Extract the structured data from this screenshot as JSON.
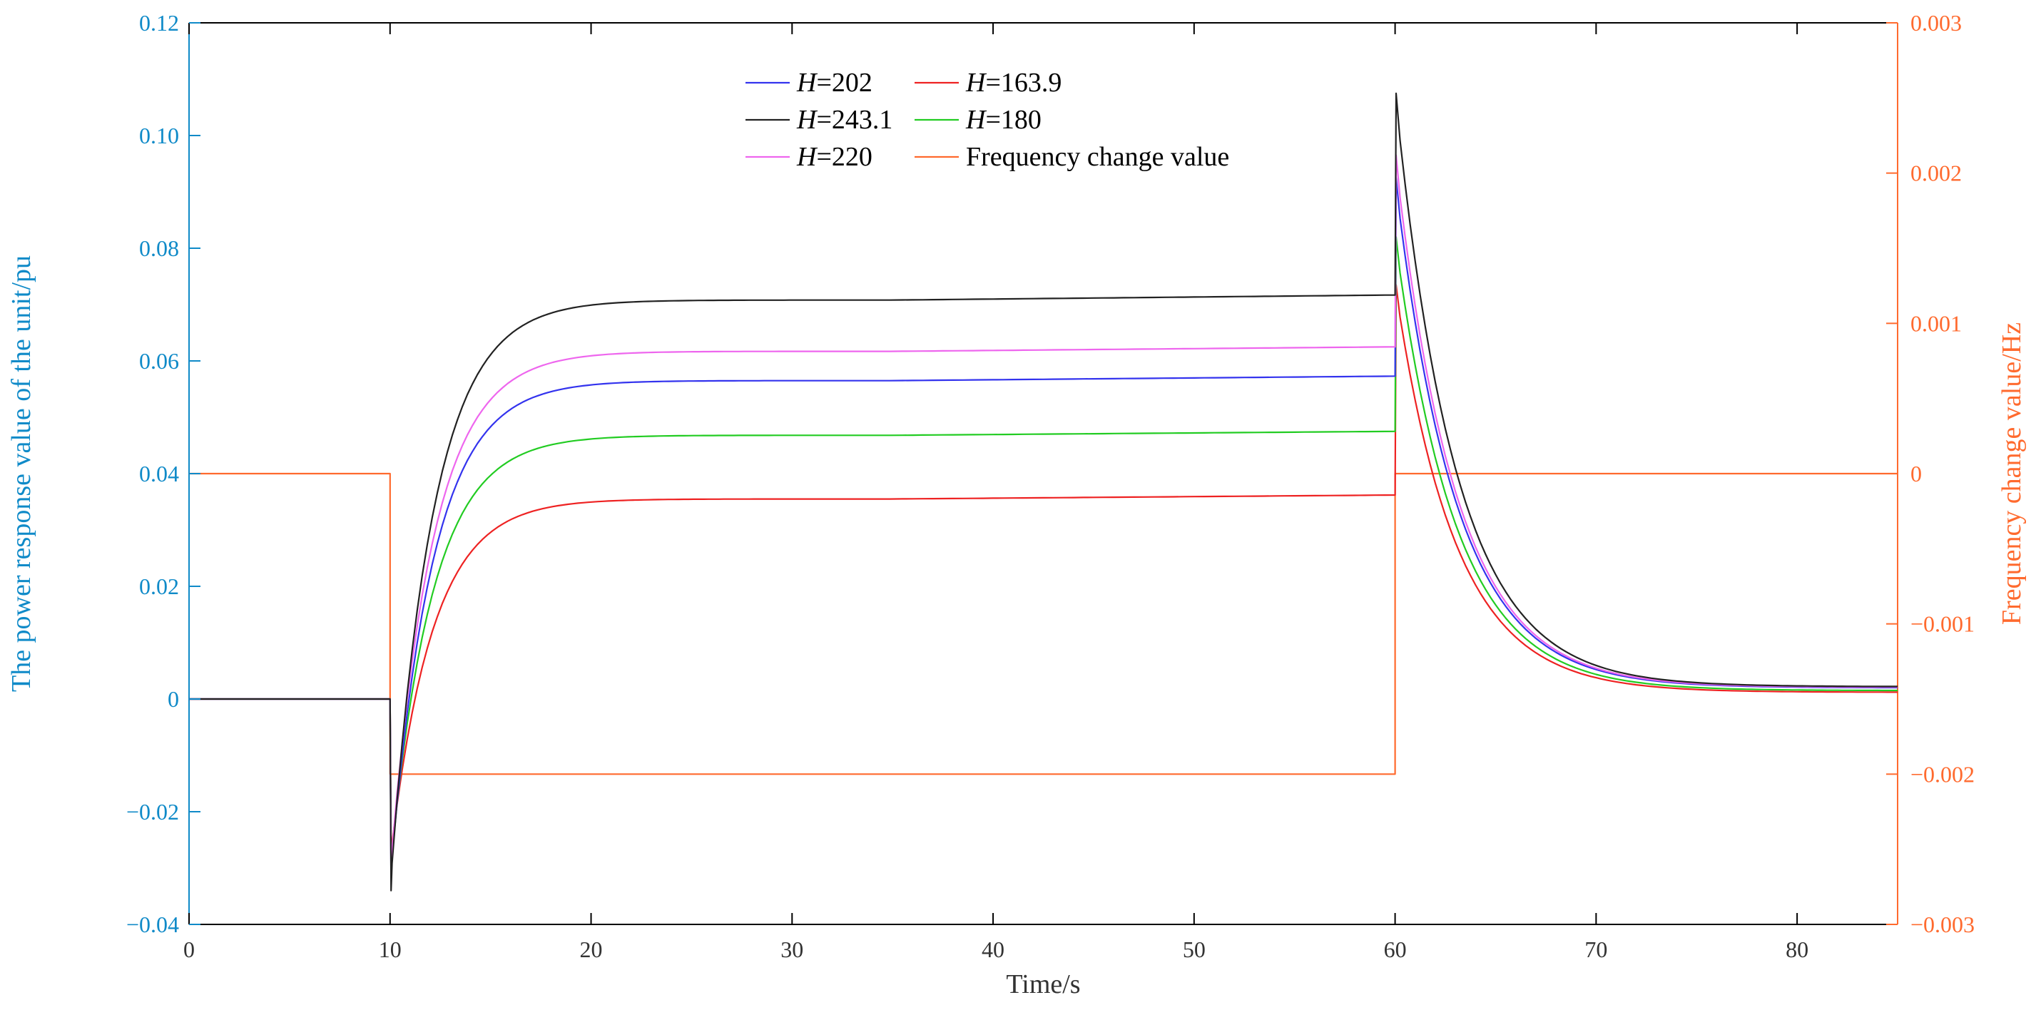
{
  "chart_data": {
    "type": "line",
    "title": "",
    "xlabel": "Time/s",
    "ylabel_left": "The power response value of the unit/pu",
    "ylabel_right": "Frequency change value/Hz",
    "xlim": [
      0,
      85
    ],
    "ylim_left": [
      -0.04,
      0.12
    ],
    "ylim_right": [
      -0.003,
      0.003
    ],
    "x_ticks": [
      "0",
      "10",
      "20",
      "30",
      "40",
      "50",
      "60",
      "70",
      "80"
    ],
    "y_left_ticks": [
      "−0.04",
      "−0.02",
      "0",
      "0.02",
      "0.04",
      "0.06",
      "0.08",
      "0.10",
      "0.12"
    ],
    "y_right_ticks": [
      "−0.003",
      "−0.002",
      "−0.001",
      "0",
      "0.001",
      "0.002",
      "0.003"
    ],
    "grid": false,
    "legend_position": "top-center",
    "colors": {
      "left_axis": "#0f8ac8",
      "right_axis": "#ff6a2e"
    },
    "series": [
      {
        "name_prefix": "H",
        "name_suffix": "=202",
        "axis": "left",
        "color": "#3333ee",
        "min": -0.032,
        "steady": 0.0565,
        "end": 0.0573,
        "peak": 0.0925,
        "final": 0.002
      },
      {
        "name_prefix": "H",
        "name_suffix": "=163.9",
        "axis": "left",
        "color": "#ee2222",
        "min": -0.0285,
        "steady": 0.0355,
        "end": 0.0362,
        "peak": 0.0735,
        "final": 0.0012
      },
      {
        "name_prefix": "H",
        "name_suffix": "=243.1",
        "axis": "left",
        "color": "#222222",
        "min": -0.034,
        "steady": 0.0708,
        "end": 0.0717,
        "peak": 0.1075,
        "final": 0.0022
      },
      {
        "name_prefix": "H",
        "name_suffix": "=180",
        "axis": "left",
        "color": "#22cc22",
        "min": -0.03,
        "steady": 0.0468,
        "end": 0.0475,
        "peak": 0.082,
        "final": 0.0015
      },
      {
        "name_prefix": "H",
        "name_suffix": "=220",
        "axis": "left",
        "color": "#ee66ee",
        "min": -0.031,
        "steady": 0.0617,
        "end": 0.0625,
        "peak": 0.0965,
        "final": 0.0021
      },
      {
        "name_prefix": "",
        "name_suffix": "Frequency change value",
        "axis": "right",
        "color": "#ff6a2e",
        "x": [
          0,
          10,
          10,
          60,
          60,
          85
        ],
        "y": [
          0,
          0,
          -0.002,
          -0.002,
          0,
          0
        ]
      }
    ],
    "step_times": {
      "drop": 10,
      "recover": 60
    }
  }
}
